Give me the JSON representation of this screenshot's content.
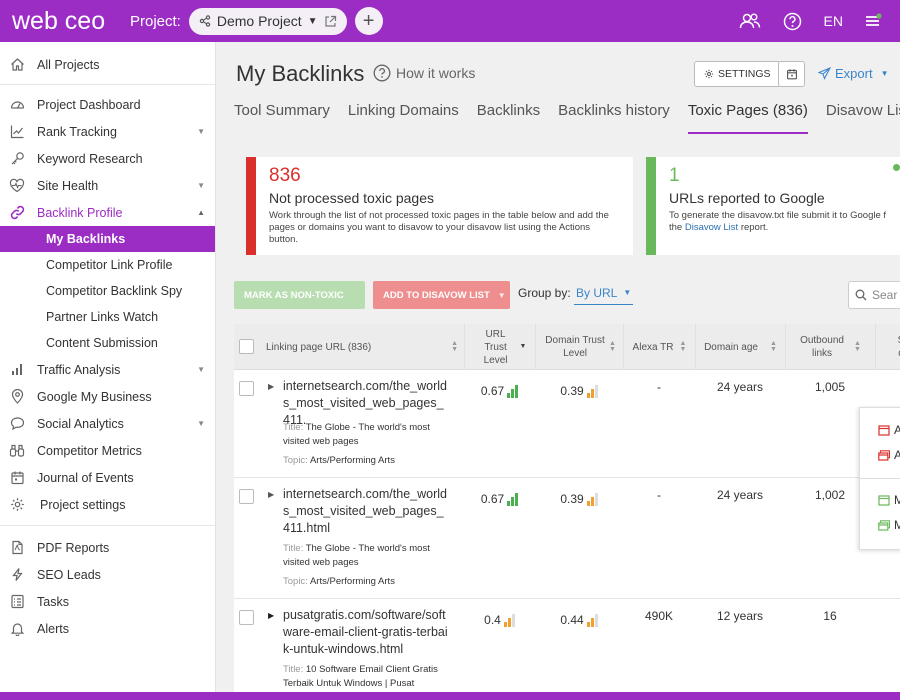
{
  "topbar": {
    "logo": "web ceo",
    "project_label": "Project:",
    "project_name": "Demo Project",
    "language": "EN"
  },
  "sidebar": {
    "all_projects": "All Projects",
    "items": [
      {
        "label": "Project Dashboard"
      },
      {
        "label": "Rank Tracking"
      },
      {
        "label": "Keyword Research"
      },
      {
        "label": "Site Health"
      },
      {
        "label": "Backlink Profile"
      }
    ],
    "sub_items": [
      {
        "label": "My Backlinks"
      },
      {
        "label": "Competitor Link Profile"
      },
      {
        "label": "Competitor Backlink Spy"
      },
      {
        "label": "Partner Links Watch"
      },
      {
        "label": "Content Submission"
      }
    ],
    "items2": [
      {
        "label": "Traffic Analysis"
      },
      {
        "label": "Google My Business"
      },
      {
        "label": "Social Analytics"
      },
      {
        "label": "Competitor Metrics"
      },
      {
        "label": "Journal of Events"
      },
      {
        "label": "Project settings"
      }
    ],
    "items3": [
      {
        "label": "PDF Reports"
      },
      {
        "label": "SEO Leads"
      },
      {
        "label": "Tasks"
      },
      {
        "label": "Alerts"
      }
    ]
  },
  "main": {
    "title": "My Backlinks",
    "how_it_works": "How it works",
    "settings_label": "SETTINGS",
    "export_label": "Export",
    "tabs": [
      {
        "label": "Tool Summary"
      },
      {
        "label": "Linking Domains"
      },
      {
        "label": "Backlinks"
      },
      {
        "label": "Backlinks history"
      },
      {
        "label": "Toxic Pages (836)"
      },
      {
        "label": "Disavow List ("
      }
    ],
    "card1": {
      "number": "836",
      "heading": "Not processed toxic pages",
      "desc": "Work through the list of not processed toxic pages in the table below and add the pages or domains you want to disavow to your disavow list using the Actions button."
    },
    "card2": {
      "number": "1",
      "heading": "URLs reported to Google",
      "desc_a": "To generate the disavow.txt file submit it to Google f",
      "desc_b_pre": "the ",
      "desc_link": "Disavow List",
      "desc_b_post": " report."
    },
    "btn_non_toxic": "MARK AS NON-TOXIC",
    "btn_disavow": "ADD TO DISAVOW LIST",
    "group_by_label": "Group by:",
    "group_by_value": "By URL",
    "search_placeholder": "Sear",
    "columns": {
      "url": "Linking page URL (836)",
      "url_trust": "URL Trust Level",
      "domain_trust": "Domain Trust Level",
      "alexa": "Alexa TR",
      "domain_age": "Domain age",
      "outbound": "Outbound links",
      "last": "S d"
    },
    "rows": [
      {
        "url": "internetsearch.com/the_worlds_most_visited_web_pages_411.",
        "title_key": "Title:",
        "title": "The Globe - The world's most visited web pages",
        "topic_key": "Topic:",
        "topic": "Arts/Performing Arts",
        "url_trust": "0.67",
        "domain_trust": "0.39",
        "alexa": "-",
        "domain_age": "24 years",
        "outbound": "1,005"
      },
      {
        "url": "internetsearch.com/the_worlds_most_visited_web_pages_411.html",
        "title_key": "Title:",
        "title": "The Globe - The world's most visited web pages",
        "topic_key": "Topic:",
        "topic": "Arts/Performing Arts",
        "url_trust": "0.67",
        "domain_trust": "0.39",
        "alexa": "-",
        "domain_age": "24 years",
        "outbound": "1,002"
      },
      {
        "url": "pusatgratis.com/software/software-email-client-gratis-terbaik-untuk-windows.html",
        "title_key": "Title:",
        "title": "10 Software Email Client Gratis Terbaik Untuk Windows | Pusat",
        "topic_key": "",
        "topic": "",
        "url_trust": "0.4",
        "domain_trust": "0.44",
        "alexa": "490K",
        "domain_age": "12 years",
        "outbound": "16"
      }
    ],
    "popup_items": [
      {
        "label": "A"
      },
      {
        "label": "A"
      },
      {
        "label": "M"
      },
      {
        "label": "M"
      }
    ]
  },
  "colors": {
    "brand": "#9b2cc4",
    "danger": "#d9302c",
    "success": "#6ab85c",
    "link": "#3a85c9"
  }
}
